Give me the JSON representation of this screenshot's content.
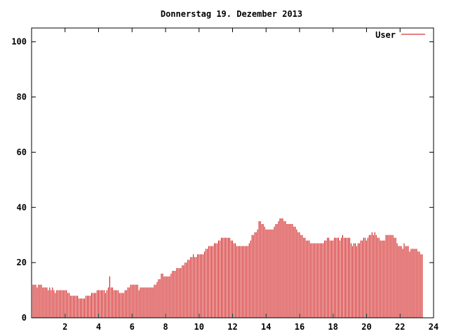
{
  "chart_data": {
    "type": "bar",
    "title": "Donnerstag 19. Dezember 2013",
    "xlabel": "",
    "ylabel": "",
    "xlim": [
      0,
      24
    ],
    "ylim": [
      0,
      105
    ],
    "x_ticks": [
      2,
      4,
      6,
      8,
      10,
      12,
      14,
      16,
      18,
      20,
      22,
      24
    ],
    "y_ticks": [
      0,
      20,
      40,
      60,
      80,
      100
    ],
    "x_tick_labels": [
      "2",
      "4",
      "6",
      "8",
      "10",
      "12",
      "14",
      "16",
      "18",
      "20",
      "22",
      "24"
    ],
    "y_tick_labels": [
      "0",
      "20",
      "40",
      "60",
      "80",
      "100"
    ],
    "grid": false,
    "legend_position": "top-right",
    "x_step_hours": 0.0833,
    "series": [
      {
        "name": "User",
        "color": "#cc0000",
        "values": [
          12,
          12,
          12,
          12,
          11,
          12,
          12,
          12,
          11,
          11,
          11,
          11,
          10,
          11,
          10,
          11,
          10,
          9,
          10,
          10,
          10,
          10,
          10,
          10,
          10,
          10,
          9,
          9,
          8,
          8,
          8,
          8,
          8,
          8,
          7,
          7,
          7,
          7,
          7,
          8,
          8,
          8,
          8,
          9,
          9,
          9,
          9,
          10,
          10,
          10,
          10,
          10,
          10,
          9,
          10,
          11,
          15,
          11,
          11,
          10,
          10,
          10,
          10,
          9,
          9,
          9,
          9,
          10,
          10,
          11,
          11,
          12,
          12,
          12,
          12,
          12,
          12,
          10,
          11,
          11,
          11,
          11,
          11,
          11,
          11,
          11,
          11,
          11,
          12,
          12,
          13,
          14,
          14,
          16,
          16,
          15,
          15,
          15,
          15,
          15,
          16,
          17,
          17,
          17,
          18,
          18,
          18,
          18,
          19,
          19,
          20,
          20,
          21,
          21,
          22,
          22,
          23,
          22,
          22,
          23,
          23,
          23,
          23,
          23,
          24,
          25,
          25,
          26,
          26,
          26,
          26,
          27,
          27,
          27,
          28,
          28,
          29,
          29,
          29,
          29,
          29,
          29,
          29,
          28,
          28,
          27,
          27,
          26,
          26,
          26,
          26,
          26,
          26,
          26,
          26,
          26,
          27,
          28,
          30,
          30,
          31,
          31,
          32,
          35,
          35,
          34,
          34,
          33,
          32,
          32,
          32,
          32,
          32,
          32,
          33,
          34,
          34,
          35,
          36,
          36,
          36,
          35,
          35,
          34,
          34,
          34,
          34,
          34,
          33,
          33,
          32,
          31,
          31,
          30,
          30,
          29,
          29,
          28,
          28,
          28,
          27,
          27,
          27,
          27,
          27,
          27,
          27,
          27,
          27,
          27,
          28,
          28,
          29,
          29,
          28,
          28,
          28,
          29,
          29,
          29,
          29,
          28,
          29,
          30,
          29,
          29,
          29,
          29,
          29,
          27,
          26,
          27,
          27,
          26,
          27,
          27,
          28,
          28,
          29,
          29,
          28,
          29,
          30,
          30,
          31,
          30,
          31,
          30,
          29,
          29,
          28,
          28,
          28,
          28,
          30,
          30,
          30,
          30,
          30,
          30,
          29,
          29,
          27,
          26,
          26,
          26,
          25,
          27,
          26,
          26,
          26,
          24,
          25,
          25,
          25,
          25,
          25,
          24,
          24,
          23,
          23
        ]
      }
    ]
  }
}
